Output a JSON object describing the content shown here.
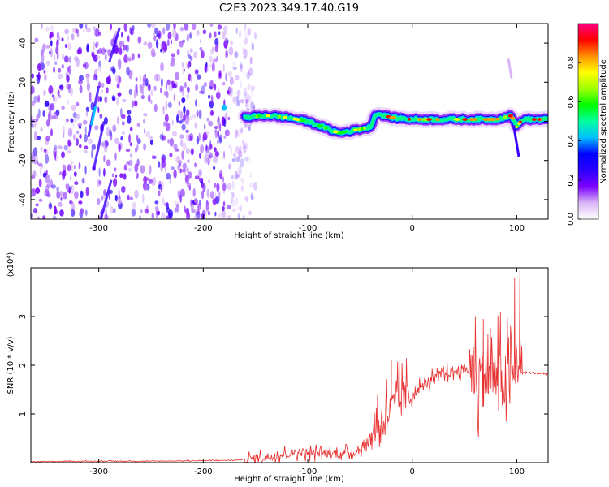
{
  "figure": {
    "title": "C2E3.2023.349.17.40.G19"
  },
  "chart_data": [
    {
      "type": "heatmap",
      "xlabel": "Height of straight line (km)",
      "ylabel": "Frequency (Hz)",
      "xlim": [
        -365,
        130
      ],
      "ylim": [
        -50,
        50
      ],
      "x_ticks": [
        -300,
        -200,
        -100,
        0,
        100
      ],
      "y_ticks": [
        -40,
        -20,
        0,
        20,
        40
      ],
      "colorbar": {
        "label": "Normalized spectral amplitude",
        "range": [
          0,
          1
        ],
        "ticks": [
          "0.0",
          "0.2",
          "0.4",
          "0.6",
          "0.8"
        ],
        "colors": [
          "#ffffff",
          "#d9b6f5",
          "#7a00ff",
          "#2a00ff",
          "#0000ff",
          "#00c0ff",
          "#00ffa0",
          "#00ff00",
          "#a0ff00",
          "#ffff00",
          "#ff9000",
          "#ff0000",
          "#ff0080"
        ]
      },
      "trace": {
        "x": [
          -160,
          -140,
          -120,
          -100,
          -80,
          -70,
          -60,
          -50,
          -40,
          -35,
          -20,
          0,
          40,
          80,
          95,
          100,
          105,
          130
        ],
        "frequency": [
          2,
          3,
          2,
          0,
          -4,
          -6,
          -5,
          -4,
          -3,
          4,
          2,
          1,
          1,
          1,
          3,
          -3,
          1,
          1
        ]
      },
      "noise_region": {
        "x_start": -365,
        "x_end": -160
      }
    },
    {
      "type": "line",
      "xlabel": "Height of straight line (km)",
      "ylabel": "SNR (10 * v/v)",
      "y_multiplier": "(x10⁴)",
      "xlim": [
        -365,
        130
      ],
      "ylim": [
        0,
        4
      ],
      "x_ticks": [
        -300,
        -200,
        -100,
        0,
        100
      ],
      "y_ticks": [
        1,
        2,
        3
      ],
      "series": [
        {
          "color": "#e83030",
          "x": [
            -365,
            -300,
            -250,
            -200,
            -170,
            -150,
            -130,
            -110,
            -90,
            -70,
            -55,
            -45,
            -35,
            -25,
            -15,
            -5,
            5,
            15,
            25,
            35,
            45,
            55,
            65,
            75,
            85,
            95,
            100,
            105,
            110,
            130
          ],
          "y": [
            0.02,
            0.03,
            0.03,
            0.04,
            0.05,
            0.08,
            0.15,
            0.22,
            0.2,
            0.18,
            0.22,
            0.35,
            0.75,
            1.0,
            1.2,
            1.35,
            1.5,
            1.65,
            1.78,
            1.85,
            1.9,
            1.92,
            1.75,
            1.85,
            1.7,
            1.6,
            2.2,
            1.85,
            1.85,
            1.82
          ]
        }
      ],
      "spikes": [
        {
          "x": -20,
          "y": 2.12
        },
        {
          "x": -12,
          "y": 2.1
        },
        {
          "x": 68,
          "y": 2.95
        },
        {
          "x": 98,
          "y": 3.8
        },
        {
          "x": 103,
          "y": 3.95
        }
      ]
    }
  ]
}
